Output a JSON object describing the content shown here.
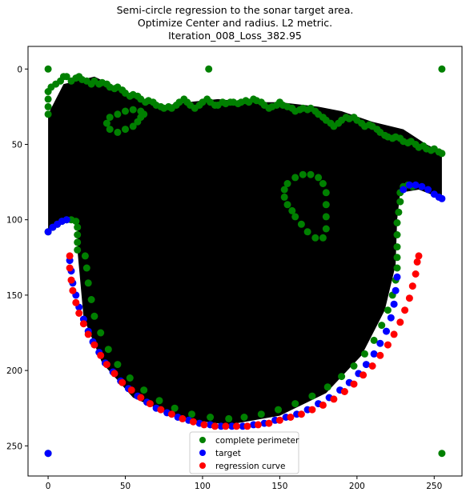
{
  "title_lines": [
    "Semi-circle regression to the sonar target area.",
    "Optimize Center and radius. L2 metric.",
    "Iteration_008_Loss_382.95"
  ],
  "chart_data": {
    "type": "scatter",
    "title": "Semi-circle regression to the sonar target area. Optimize Center and radius. L2 metric. Iteration_008_Loss_382.95",
    "xlim": [
      -13,
      268
    ],
    "ylim": [
      270,
      -15
    ],
    "x_ticks": [
      0,
      50,
      100,
      150,
      200,
      250
    ],
    "y_ticks": [
      0,
      50,
      100,
      150,
      200,
      250
    ],
    "grid": false,
    "legend_position": "bottom-center",
    "filled_area": {
      "color": "#000000",
      "outline": [
        [
          0,
          30
        ],
        [
          10,
          10
        ],
        [
          30,
          5
        ],
        [
          50,
          15
        ],
        [
          70,
          25
        ],
        [
          90,
          22
        ],
        [
          110,
          20
        ],
        [
          130,
          22
        ],
        [
          150,
          22
        ],
        [
          175,
          25
        ],
        [
          190,
          28
        ],
        [
          210,
          35
        ],
        [
          230,
          40
        ],
        [
          245,
          50
        ],
        [
          255,
          55
        ],
        [
          255,
          86
        ],
        [
          240,
          80
        ],
        [
          228,
          82
        ],
        [
          226,
          100
        ],
        [
          225,
          130
        ],
        [
          218,
          160
        ],
        [
          203,
          190
        ],
        [
          180,
          215
        ],
        [
          150,
          230
        ],
        [
          117,
          236
        ],
        [
          85,
          232
        ],
        [
          55,
          218
        ],
        [
          35,
          195
        ],
        [
          23,
          165
        ],
        [
          19,
          120
        ],
        [
          19,
          102
        ],
        [
          10,
          102
        ],
        [
          0,
          108
        ]
      ]
    },
    "series": [
      {
        "name": "complete perimeter",
        "color": "#008000",
        "points": [
          [
            0,
            0
          ],
          [
            104,
            0
          ],
          [
            255,
            0
          ],
          [
            0,
            255
          ],
          [
            255,
            255
          ],
          [
            0,
            108
          ],
          [
            3,
            105
          ],
          [
            6,
            103
          ],
          [
            9,
            101
          ],
          [
            12,
            100
          ],
          [
            15,
            100
          ],
          [
            18,
            101
          ],
          [
            19,
            105
          ],
          [
            19,
            110
          ],
          [
            19,
            115
          ],
          [
            19,
            120
          ],
          [
            0,
            30
          ],
          [
            0,
            25
          ],
          [
            0,
            20
          ],
          [
            0,
            15
          ],
          [
            2,
            12
          ],
          [
            5,
            10
          ],
          [
            8,
            8
          ],
          [
            10,
            5
          ],
          [
            12,
            5
          ],
          [
            15,
            8
          ],
          [
            18,
            6
          ],
          [
            20,
            5
          ],
          [
            22,
            7
          ],
          [
            25,
            8
          ],
          [
            28,
            10
          ],
          [
            30,
            8
          ],
          [
            33,
            10
          ],
          [
            35,
            9
          ],
          [
            38,
            10
          ],
          [
            40,
            12
          ],
          [
            43,
            13
          ],
          [
            45,
            12
          ],
          [
            48,
            14
          ],
          [
            50,
            16
          ],
          [
            53,
            18
          ],
          [
            55,
            17
          ],
          [
            58,
            18
          ],
          [
            60,
            20
          ],
          [
            63,
            22
          ],
          [
            65,
            21
          ],
          [
            68,
            22
          ],
          [
            70,
            24
          ],
          [
            73,
            25
          ],
          [
            75,
            26
          ],
          [
            78,
            25
          ],
          [
            80,
            26
          ],
          [
            83,
            24
          ],
          [
            85,
            22
          ],
          [
            88,
            20
          ],
          [
            90,
            22
          ],
          [
            92,
            24
          ],
          [
            95,
            26
          ],
          [
            98,
            24
          ],
          [
            100,
            22
          ],
          [
            103,
            20
          ],
          [
            105,
            22
          ],
          [
            108,
            24
          ],
          [
            110,
            24
          ],
          [
            113,
            22
          ],
          [
            115,
            23
          ],
          [
            118,
            22
          ],
          [
            120,
            22
          ],
          [
            123,
            23
          ],
          [
            125,
            22
          ],
          [
            128,
            21
          ],
          [
            130,
            22
          ],
          [
            133,
            20
          ],
          [
            135,
            21
          ],
          [
            138,
            22
          ],
          [
            140,
            24
          ],
          [
            143,
            26
          ],
          [
            145,
            25
          ],
          [
            148,
            24
          ],
          [
            150,
            22
          ],
          [
            152,
            24
          ],
          [
            155,
            25
          ],
          [
            158,
            26
          ],
          [
            160,
            28
          ],
          [
            163,
            27
          ],
          [
            165,
            26
          ],
          [
            168,
            27
          ],
          [
            170,
            26
          ],
          [
            173,
            28
          ],
          [
            175,
            30
          ],
          [
            178,
            32
          ],
          [
            180,
            34
          ],
          [
            183,
            36
          ],
          [
            185,
            38
          ],
          [
            188,
            36
          ],
          [
            190,
            34
          ],
          [
            193,
            32
          ],
          [
            195,
            33
          ],
          [
            198,
            32
          ],
          [
            200,
            34
          ],
          [
            203,
            36
          ],
          [
            205,
            38
          ],
          [
            208,
            37
          ],
          [
            210,
            38
          ],
          [
            213,
            40
          ],
          [
            215,
            42
          ],
          [
            218,
            44
          ],
          [
            220,
            45
          ],
          [
            223,
            46
          ],
          [
            225,
            45
          ],
          [
            228,
            46
          ],
          [
            230,
            48
          ],
          [
            233,
            49
          ],
          [
            235,
            48
          ],
          [
            238,
            50
          ],
          [
            240,
            52
          ],
          [
            243,
            51
          ],
          [
            245,
            53
          ],
          [
            248,
            54
          ],
          [
            250,
            53
          ],
          [
            253,
            55
          ],
          [
            255,
            56
          ],
          [
            40,
            40
          ],
          [
            45,
            42
          ],
          [
            50,
            40
          ],
          [
            55,
            38
          ],
          [
            58,
            35
          ],
          [
            60,
            32
          ],
          [
            62,
            30
          ],
          [
            60,
            28
          ],
          [
            55,
            27
          ],
          [
            50,
            28
          ],
          [
            45,
            30
          ],
          [
            40,
            32
          ],
          [
            38,
            36
          ],
          [
            228,
            82
          ],
          [
            230,
            78
          ],
          [
            233,
            77
          ],
          [
            236,
            78
          ],
          [
            228,
            88
          ],
          [
            227,
            95
          ],
          [
            226,
            102
          ],
          [
            226,
            110
          ],
          [
            226,
            118
          ],
          [
            226,
            125
          ],
          [
            226,
            132
          ],
          [
            225,
            140
          ],
          [
            223,
            150
          ],
          [
            220,
            160
          ],
          [
            216,
            170
          ],
          [
            211,
            180
          ],
          [
            205,
            189
          ],
          [
            198,
            197
          ],
          [
            190,
            204
          ],
          [
            181,
            211
          ],
          [
            171,
            217
          ],
          [
            160,
            222
          ],
          [
            149,
            226
          ],
          [
            138,
            229
          ],
          [
            127,
            231
          ],
          [
            117,
            232
          ],
          [
            105,
            231
          ],
          [
            93,
            229
          ],
          [
            82,
            225
          ],
          [
            72,
            220
          ],
          [
            62,
            213
          ],
          [
            53,
            205
          ],
          [
            45,
            196
          ],
          [
            39,
            186
          ],
          [
            34,
            175
          ],
          [
            30,
            164
          ],
          [
            28,
            153
          ],
          [
            26,
            142
          ],
          [
            25,
            132
          ],
          [
            24,
            124
          ],
          [
            160,
            72
          ],
          [
            165,
            70
          ],
          [
            170,
            70
          ],
          [
            175,
            72
          ],
          [
            178,
            76
          ],
          [
            180,
            82
          ],
          [
            180,
            90
          ],
          [
            180,
            98
          ],
          [
            180,
            106
          ],
          [
            178,
            112
          ],
          [
            173,
            112
          ],
          [
            168,
            108
          ],
          [
            164,
            103
          ],
          [
            160,
            98
          ],
          [
            158,
            94
          ],
          [
            155,
            90
          ],
          [
            153,
            85
          ],
          [
            153,
            80
          ],
          [
            155,
            76
          ]
        ]
      },
      {
        "name": "target",
        "color": "#0000ff",
        "points": [
          [
            0,
            255
          ],
          [
            0,
            108
          ],
          [
            3,
            105
          ],
          [
            6,
            103
          ],
          [
            9,
            101
          ],
          [
            12,
            100
          ],
          [
            14,
            127
          ],
          [
            15,
            134
          ],
          [
            16,
            142
          ],
          [
            18,
            150
          ],
          [
            20,
            158
          ],
          [
            23,
            166
          ],
          [
            26,
            174
          ],
          [
            29,
            181
          ],
          [
            33,
            188
          ],
          [
            37,
            195
          ],
          [
            42,
            201
          ],
          [
            47,
            207
          ],
          [
            52,
            212
          ],
          [
            58,
            217
          ],
          [
            64,
            221
          ],
          [
            70,
            225
          ],
          [
            77,
            228
          ],
          [
            84,
            231
          ],
          [
            91,
            233
          ],
          [
            98,
            235
          ],
          [
            105,
            236
          ],
          [
            112,
            237
          ],
          [
            119,
            237
          ],
          [
            126,
            237
          ],
          [
            133,
            236
          ],
          [
            140,
            235
          ],
          [
            147,
            233
          ],
          [
            154,
            231
          ],
          [
            161,
            229
          ],
          [
            168,
            226
          ],
          [
            175,
            222
          ],
          [
            182,
            218
          ],
          [
            189,
            213
          ],
          [
            195,
            208
          ],
          [
            201,
            202
          ],
          [
            206,
            196
          ],
          [
            211,
            189
          ],
          [
            215,
            182
          ],
          [
            219,
            174
          ],
          [
            222,
            165
          ],
          [
            224,
            156
          ],
          [
            225,
            147
          ],
          [
            226,
            138
          ],
          [
            230,
            80
          ],
          [
            234,
            77
          ],
          [
            238,
            77
          ],
          [
            242,
            78
          ],
          [
            246,
            80
          ],
          [
            250,
            83
          ],
          [
            253,
            85
          ],
          [
            255,
            86
          ]
        ]
      },
      {
        "name": "regression curve",
        "color": "#ff0000",
        "points": [
          [
            14,
            124
          ],
          [
            14,
            132
          ],
          [
            15,
            140
          ],
          [
            16,
            147
          ],
          [
            18,
            155
          ],
          [
            20,
            162
          ],
          [
            23,
            169
          ],
          [
            26,
            176
          ],
          [
            30,
            183
          ],
          [
            34,
            190
          ],
          [
            38,
            196
          ],
          [
            43,
            202
          ],
          [
            48,
            208
          ],
          [
            54,
            213
          ],
          [
            60,
            218
          ],
          [
            66,
            222
          ],
          [
            73,
            226
          ],
          [
            80,
            229
          ],
          [
            87,
            232
          ],
          [
            94,
            234
          ],
          [
            101,
            236
          ],
          [
            108,
            237
          ],
          [
            115,
            237
          ],
          [
            122,
            237
          ],
          [
            129,
            237
          ],
          [
            136,
            236
          ],
          [
            143,
            235
          ],
          [
            150,
            233
          ],
          [
            157,
            231
          ],
          [
            164,
            229
          ],
          [
            171,
            226
          ],
          [
            178,
            223
          ],
          [
            185,
            219
          ],
          [
            192,
            214
          ],
          [
            198,
            209
          ],
          [
            204,
            203
          ],
          [
            210,
            197
          ],
          [
            215,
            190
          ],
          [
            220,
            183
          ],
          [
            224,
            176
          ],
          [
            228,
            168
          ],
          [
            231,
            160
          ],
          [
            234,
            152
          ],
          [
            236,
            144
          ],
          [
            238,
            136
          ],
          [
            239,
            128
          ],
          [
            240,
            124
          ]
        ]
      }
    ]
  }
}
